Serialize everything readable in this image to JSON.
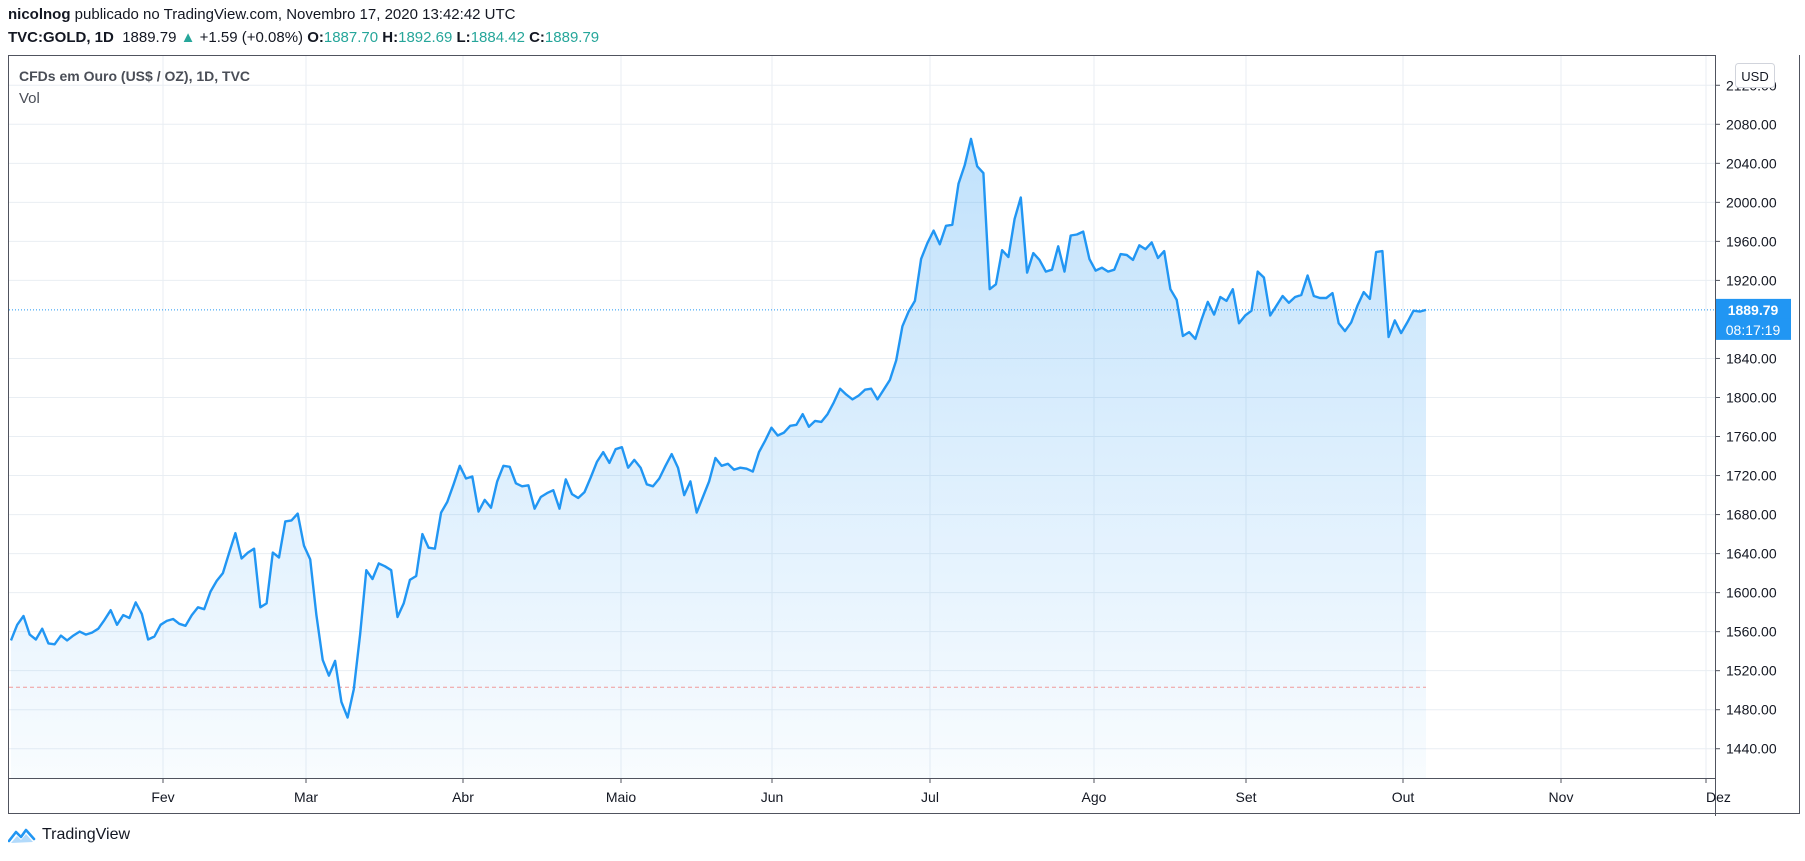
{
  "header": {
    "author": "nicolnog",
    "publish_text": "publicado no TradingView.com, Novembro 17, 2020 13:42:42 UTC",
    "symbol": "TVC:GOLD, 1D",
    "price": "1889.79",
    "change": "+1.59 (+0.08%)",
    "open_label": "O:",
    "open": "1887.70",
    "high_label": "H:",
    "high": "1892.69",
    "low_label": "L:",
    "low": "1884.42",
    "close_label": "C:",
    "close": "1889.79"
  },
  "legend": {
    "title": "CFDs em Ouro (US$ / OZ), 1D, TVC",
    "volume": "Vol"
  },
  "currency_button": "USD",
  "price_badge": "1889.79",
  "timer_badge": "08:17:19",
  "footer": {
    "brand": "TradingView"
  },
  "colors": {
    "line": "#2196f3",
    "badge": "#2196f3",
    "up": "#26a69a",
    "grid": "#e9eef3"
  },
  "chart_data": {
    "type": "area",
    "title": "CFDs em Ouro (US$ / OZ), 1D, TVC",
    "x_tick_labels": [
      "Fev",
      "Mar",
      "Abr",
      "Maio",
      "Jun",
      "Jul",
      "Ago",
      "Set",
      "Out",
      "Nov",
      "Dez"
    ],
    "y_tick_labels": [
      "1440.00",
      "1480.00",
      "1520.00",
      "1560.00",
      "1600.00",
      "1640.00",
      "1680.00",
      "1720.00",
      "1760.00",
      "1800.00",
      "1840.00",
      "1920.00",
      "1960.00",
      "2000.00",
      "2040.00",
      "2080.00",
      "2120.00"
    ],
    "ylim": [
      1410,
      2150
    ],
    "last_close": 1889.79,
    "reference_level": 1503,
    "series": [
      {
        "values": [
          1551,
          1567,
          1576,
          1557,
          1552,
          1563,
          1548,
          1547,
          1556,
          1551,
          1556,
          1560,
          1557,
          1559,
          1563,
          1572,
          1582,
          1567,
          1577,
          1574,
          1590,
          1578,
          1552,
          1555,
          1567,
          1571,
          1573,
          1568,
          1566,
          1577,
          1585,
          1583,
          1601,
          1612,
          1620,
          1641,
          1661,
          1635,
          1641,
          1645,
          1585,
          1589,
          1641,
          1636,
          1673,
          1674,
          1681,
          1648,
          1634,
          1577,
          1531,
          1515,
          1530,
          1488,
          1472,
          1501,
          1557,
          1623,
          1614,
          1630,
          1627,
          1623,
          1575,
          1589,
          1613,
          1617,
          1660,
          1646,
          1645,
          1682,
          1693,
          1711,
          1730,
          1717,
          1719,
          1683,
          1695,
          1687,
          1714,
          1730,
          1729,
          1712,
          1709,
          1710,
          1686,
          1698,
          1702,
          1705,
          1686,
          1716,
          1701,
          1697,
          1703,
          1718,
          1734,
          1744,
          1733,
          1747,
          1749,
          1728,
          1736,
          1728,
          1711,
          1709,
          1717,
          1730,
          1742,
          1728,
          1700,
          1714,
          1682,
          1698,
          1714,
          1738,
          1730,
          1732,
          1726,
          1728,
          1727,
          1724,
          1744,
          1756,
          1769,
          1761,
          1764,
          1771,
          1772,
          1783,
          1770,
          1776,
          1775,
          1783,
          1795,
          1809,
          1803,
          1798,
          1802,
          1808,
          1809,
          1798,
          1808,
          1818,
          1838,
          1873,
          1888,
          1899,
          1942,
          1958,
          1971,
          1957,
          1976,
          1977,
          2019,
          2038,
          2065,
          2037,
          2030,
          1911,
          1916,
          1951,
          1944,
          1983,
          2005,
          1928,
          1948,
          1941,
          1929,
          1931,
          1955,
          1929,
          1966,
          1967,
          1970,
          1942,
          1930,
          1933,
          1929,
          1931,
          1947,
          1946,
          1941,
          1956,
          1952,
          1959,
          1943,
          1950,
          1911,
          1900,
          1863,
          1867,
          1860,
          1880,
          1898,
          1885,
          1903,
          1899,
          1911,
          1876,
          1884,
          1889,
          1929,
          1923,
          1884,
          1894,
          1904,
          1897,
          1903,
          1905,
          1925,
          1904,
          1902,
          1902,
          1907,
          1876,
          1868,
          1877,
          1894,
          1908,
          1901,
          1949,
          1950,
          1862,
          1879,
          1866,
          1877,
          1889,
          1888,
          1889.79
        ]
      }
    ]
  }
}
